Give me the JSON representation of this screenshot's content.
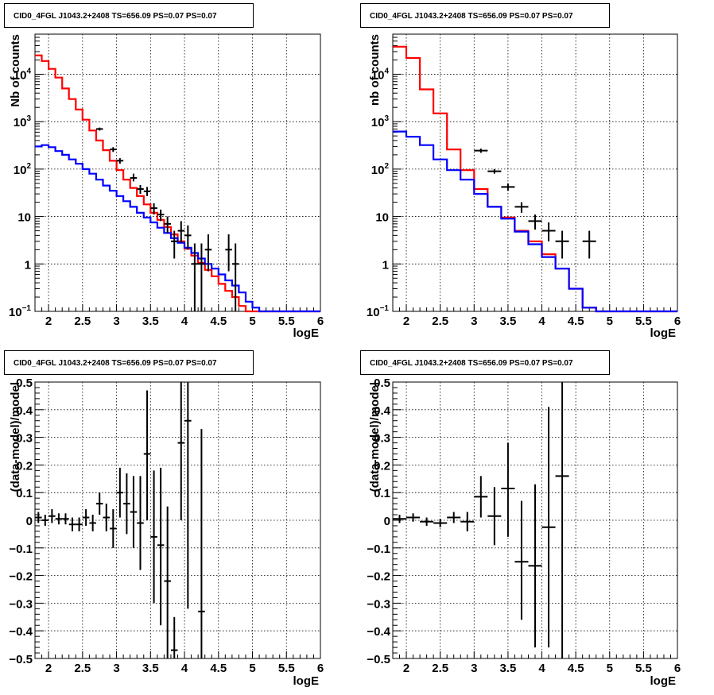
{
  "chart_data": [
    {
      "type": "line",
      "title": "CID0_4FGL J1043.2+2408 TS=656.09 PS=0.07 PS=0.07",
      "xlabel": "logE",
      "ylabel": "Nb of counts",
      "xlim": [
        1.8,
        6.0
      ],
      "ylim": [
        0.1,
        70000
      ],
      "log_y": true,
      "grid": true,
      "x_ticks": [
        2,
        2.5,
        3,
        3.5,
        4,
        4.5,
        5,
        5.5,
        6
      ],
      "x_tick_labels": [
        "2",
        "2.5",
        "3",
        "3.5",
        "4",
        "4.5",
        "5",
        "5.5",
        "6"
      ],
      "y_ticks": [
        0.1,
        1,
        10,
        100,
        1000,
        10000
      ],
      "y_tick_labels": [
        {
          "base": "10",
          "exp": "−1"
        },
        {
          "base": "1",
          "exp": ""
        },
        {
          "base": "10",
          "exp": ""
        },
        {
          "base": "10",
          "exp": "2"
        },
        {
          "base": "10",
          "exp": "3"
        },
        {
          "base": "10",
          "exp": "4"
        }
      ],
      "bin_edges": [
        1.8,
        1.9,
        2.0,
        2.1,
        2.2,
        2.3,
        2.4,
        2.5,
        2.6,
        2.7,
        2.8,
        2.9,
        3.0,
        3.1,
        3.2,
        3.3,
        3.4,
        3.5,
        3.6,
        3.7,
        3.8,
        3.9,
        4.0,
        4.1,
        4.2,
        4.3,
        4.4,
        4.5,
        4.6,
        4.7,
        4.8,
        4.9,
        5.0,
        5.1,
        5.2,
        5.3,
        5.4,
        5.5,
        5.6,
        5.7,
        5.8,
        5.9,
        6.0
      ],
      "series": [
        {
          "color": "#ff0000",
          "values": [
            25000,
            19000,
            13000,
            8500,
            5000,
            3000,
            1800,
            1100,
            650,
            400,
            250,
            150,
            95,
            60,
            40,
            27,
            18,
            12,
            8.5,
            6,
            4.2,
            3.0,
            2.1,
            1.5,
            1.05,
            0.75,
            0.55,
            0.38,
            0.27,
            0.2,
            0.13,
            0.1,
            0.1,
            0.1,
            0.1,
            0.1,
            0.1,
            0.1,
            0.1,
            0.1,
            0.1,
            0.1
          ]
        },
        {
          "color": "#0000ff",
          "values": [
            300,
            320,
            290,
            240,
            200,
            160,
            130,
            100,
            80,
            60,
            45,
            35,
            27,
            21,
            16,
            12,
            9.5,
            7.5,
            5.8,
            4.5,
            3.5,
            2.8,
            2.2,
            1.7,
            1.3,
            1.0,
            0.8,
            0.6,
            0.45,
            0.35,
            0.25,
            0.16,
            0.12,
            0.1,
            0.1,
            0.1,
            0.1,
            0.1,
            0.1,
            0.1,
            0.1,
            0.1
          ]
        }
      ],
      "points": [
        {
          "x": 2.75,
          "y": 700,
          "xerr": 0.05,
          "ylo": 650,
          "yhi": 750
        },
        {
          "x": 2.95,
          "y": 260,
          "xerr": 0.05,
          "ylo": 230,
          "yhi": 290
        },
        {
          "x": 3.05,
          "y": 150,
          "xerr": 0.05,
          "ylo": 130,
          "yhi": 170
        },
        {
          "x": 3.25,
          "y": 65,
          "xerr": 0.05,
          "ylo": 55,
          "yhi": 80
        },
        {
          "x": 3.35,
          "y": 38,
          "xerr": 0.05,
          "ylo": 30,
          "yhi": 46
        },
        {
          "x": 3.45,
          "y": 34,
          "xerr": 0.05,
          "ylo": 27,
          "yhi": 42
        },
        {
          "x": 3.55,
          "y": 15,
          "xerr": 0.05,
          "ylo": 11,
          "yhi": 19
        },
        {
          "x": 3.65,
          "y": 11,
          "xerr": 0.05,
          "ylo": 8,
          "yhi": 14
        },
        {
          "x": 3.75,
          "y": 7,
          "xerr": 0.05,
          "ylo": 4.5,
          "yhi": 10
        },
        {
          "x": 3.85,
          "y": 3,
          "xerr": 0.05,
          "ylo": 1.3,
          "yhi": 5
        },
        {
          "x": 3.95,
          "y": 5,
          "xerr": 0.05,
          "ylo": 2.8,
          "yhi": 8
        },
        {
          "x": 4.05,
          "y": 4,
          "xerr": 0.05,
          "ylo": 2,
          "yhi": 6.5
        },
        {
          "x": 4.15,
          "y": 1,
          "xerr": 0.05,
          "ylo": 0.1,
          "yhi": 2.7
        },
        {
          "x": 4.25,
          "y": 1,
          "xerr": 0.05,
          "ylo": 0.1,
          "yhi": 2.7
        },
        {
          "x": 4.35,
          "y": 2,
          "xerr": 0.05,
          "ylo": 0.7,
          "yhi": 4.2
        },
        {
          "x": 4.65,
          "y": 2,
          "xerr": 0.05,
          "ylo": 0.7,
          "yhi": 4.2
        },
        {
          "x": 4.75,
          "y": 1,
          "xerr": 0.05,
          "ylo": 0.1,
          "yhi": 2.7
        }
      ]
    },
    {
      "type": "line",
      "title": "CID0_4FGL J1043.2+2408 TS=656.09 PS=0.07 PS=0.07",
      "xlabel": "logE",
      "ylabel": "nb of counts",
      "xlim": [
        1.8,
        6.0
      ],
      "ylim": [
        0.1,
        70000
      ],
      "log_y": true,
      "grid": true,
      "x_ticks": [
        2,
        2.5,
        3,
        3.5,
        4,
        4.5,
        5,
        5.5,
        6
      ],
      "x_tick_labels": [
        "2",
        "2.5",
        "3",
        "3.5",
        "4",
        "4.5",
        "5",
        "5.5",
        "6"
      ],
      "y_ticks": [
        0.1,
        1,
        10,
        100,
        1000,
        10000
      ],
      "y_tick_labels": [
        {
          "base": "10",
          "exp": "−1"
        },
        {
          "base": "1",
          "exp": ""
        },
        {
          "base": "10",
          "exp": ""
        },
        {
          "base": "10",
          "exp": "2"
        },
        {
          "base": "10",
          "exp": "3"
        },
        {
          "base": "10",
          "exp": "4"
        }
      ],
      "bin_edges": [
        1.8,
        2.0,
        2.2,
        2.4,
        2.6,
        2.8,
        3.0,
        3.2,
        3.4,
        3.6,
        3.8,
        4.0,
        4.2,
        4.4,
        4.6,
        4.8,
        5.0,
        5.2,
        5.4,
        5.6,
        5.8,
        6.0
      ],
      "series": [
        {
          "color": "#ff0000",
          "values": [
            38000,
            22000,
            4800,
            1500,
            260,
            95,
            38,
            16,
            9.5,
            5,
            3,
            1.6,
            0.8,
            0.3,
            0.12,
            0.1,
            0.1,
            0.1,
            0.1,
            0.1,
            0.1
          ]
        },
        {
          "color": "#0000ff",
          "values": [
            620,
            480,
            320,
            160,
            95,
            60,
            30,
            16,
            9,
            4.8,
            2.6,
            1.4,
            0.8,
            0.3,
            0.12,
            0.1,
            0.1,
            0.1,
            0.1,
            0.1,
            0.1
          ]
        }
      ],
      "points": [
        {
          "x": 3.1,
          "y": 245,
          "xerr": 0.1,
          "ylo": 220,
          "yhi": 270
        },
        {
          "x": 3.3,
          "y": 90,
          "xerr": 0.1,
          "ylo": 80,
          "yhi": 100
        },
        {
          "x": 3.5,
          "y": 42,
          "xerr": 0.1,
          "ylo": 35,
          "yhi": 50
        },
        {
          "x": 3.7,
          "y": 16,
          "xerr": 0.1,
          "ylo": 12,
          "yhi": 20
        },
        {
          "x": 3.9,
          "y": 8,
          "xerr": 0.1,
          "ylo": 5.3,
          "yhi": 11
        },
        {
          "x": 4.1,
          "y": 5,
          "xerr": 0.1,
          "ylo": 3,
          "yhi": 7.5
        },
        {
          "x": 4.3,
          "y": 3,
          "xerr": 0.1,
          "ylo": 1.3,
          "yhi": 5
        },
        {
          "x": 4.7,
          "y": 3,
          "xerr": 0.1,
          "ylo": 1.3,
          "yhi": 5
        }
      ]
    },
    {
      "type": "scatter",
      "title": "CID0_4FGL J1043.2+2408 TS=656.09 PS=0.07 PS=0.07",
      "xlabel": "logE",
      "ylabel": "(data-model)/model",
      "xlim": [
        1.8,
        6.0
      ],
      "ylim": [
        -0.5,
        0.5
      ],
      "grid": true,
      "x_ticks": [
        2,
        2.5,
        3,
        3.5,
        4,
        4.5,
        5,
        5.5,
        6
      ],
      "x_tick_labels": [
        "2",
        "2.5",
        "3",
        "3.5",
        "4",
        "4.5",
        "5",
        "5.5",
        "6"
      ],
      "y_ticks": [
        -0.5,
        -0.4,
        -0.3,
        -0.2,
        -0.1,
        0,
        0.1,
        0.2,
        0.3,
        0.4,
        0.5
      ],
      "y_tick_labels": [
        "−0.5",
        "−0.4",
        "−0.3",
        "−0.2",
        "−0.1",
        "0",
        "0.1",
        "0.2",
        "0.3",
        "0.4",
        "0.5"
      ],
      "points": [
        {
          "x": 1.85,
          "y": 0.01,
          "xerr": 0.05,
          "ylo": -0.01,
          "yhi": 0.03
        },
        {
          "x": 1.95,
          "y": 0.0,
          "xerr": 0.05,
          "ylo": -0.02,
          "yhi": 0.02
        },
        {
          "x": 2.05,
          "y": 0.015,
          "xerr": 0.05,
          "ylo": -0.01,
          "yhi": 0.04
        },
        {
          "x": 2.15,
          "y": 0.005,
          "xerr": 0.05,
          "ylo": -0.015,
          "yhi": 0.025
        },
        {
          "x": 2.25,
          "y": 0.005,
          "xerr": 0.05,
          "ylo": -0.015,
          "yhi": 0.025
        },
        {
          "x": 2.35,
          "y": -0.015,
          "xerr": 0.05,
          "ylo": -0.04,
          "yhi": 0.01
        },
        {
          "x": 2.45,
          "y": -0.015,
          "xerr": 0.05,
          "ylo": -0.04,
          "yhi": 0.01
        },
        {
          "x": 2.55,
          "y": 0.01,
          "xerr": 0.05,
          "ylo": -0.02,
          "yhi": 0.04
        },
        {
          "x": 2.65,
          "y": -0.01,
          "xerr": 0.05,
          "ylo": -0.04,
          "yhi": 0.02
        },
        {
          "x": 2.75,
          "y": 0.06,
          "xerr": 0.05,
          "ylo": 0.02,
          "yhi": 0.1
        },
        {
          "x": 2.85,
          "y": 0.01,
          "xerr": 0.05,
          "ylo": -0.04,
          "yhi": 0.06
        },
        {
          "x": 2.95,
          "y": -0.03,
          "xerr": 0.05,
          "ylo": -0.1,
          "yhi": 0.04
        },
        {
          "x": 3.05,
          "y": 0.1,
          "xerr": 0.05,
          "ylo": 0.01,
          "yhi": 0.19
        },
        {
          "x": 3.15,
          "y": 0.06,
          "xerr": 0.05,
          "ylo": -0.05,
          "yhi": 0.17
        },
        {
          "x": 3.25,
          "y": 0.03,
          "xerr": 0.05,
          "ylo": -0.1,
          "yhi": 0.16
        },
        {
          "x": 3.35,
          "y": -0.01,
          "xerr": 0.05,
          "ylo": -0.18,
          "yhi": 0.16
        },
        {
          "x": 3.45,
          "y": 0.24,
          "xerr": 0.05,
          "ylo": 0.0,
          "yhi": 0.47
        },
        {
          "x": 3.55,
          "y": -0.06,
          "xerr": 0.05,
          "ylo": -0.3,
          "yhi": 0.18
        },
        {
          "x": 3.65,
          "y": -0.09,
          "xerr": 0.05,
          "ylo": -0.38,
          "yhi": 0.19
        },
        {
          "x": 3.75,
          "y": -0.22,
          "xerr": 0.05,
          "ylo": -0.5,
          "yhi": 0.05
        },
        {
          "x": 3.85,
          "y": -0.47,
          "xerr": 0.05,
          "ylo": -0.5,
          "yhi": -0.35
        },
        {
          "x": 3.95,
          "y": 0.28,
          "xerr": 0.05,
          "ylo": 0.0,
          "yhi": 0.5
        },
        {
          "x": 4.05,
          "y": 0.36,
          "xerr": 0.05,
          "ylo": -0.32,
          "yhi": 0.5
        },
        {
          "x": 4.25,
          "y": -0.33,
          "xerr": 0.05,
          "ylo": -0.5,
          "yhi": 0.33
        }
      ],
      "point_labels": []
    },
    {
      "type": "scatter",
      "title": "CID0_4FGL J1043.2+2408 TS=656.09 PS=0.07 PS=0.07",
      "xlabel": "logE",
      "ylabel": "(data-model)/model",
      "xlim": [
        1.8,
        6.0
      ],
      "ylim": [
        -0.5,
        0.5
      ],
      "grid": true,
      "x_ticks": [
        2,
        2.5,
        3,
        3.5,
        4,
        4.5,
        5,
        5.5,
        6
      ],
      "x_tick_labels": [
        "2",
        "2.5",
        "3",
        "3.5",
        "4",
        "4.5",
        "5",
        "5.5",
        "6"
      ],
      "y_ticks": [
        -0.5,
        -0.4,
        -0.3,
        -0.2,
        -0.1,
        0,
        0.1,
        0.2,
        0.3,
        0.4,
        0.5
      ],
      "y_tick_labels": [
        "−0.5",
        "−0.4",
        "−0.3",
        "−0.2",
        "−0.1",
        "0",
        "0.1",
        "0.2",
        "0.3",
        "0.4",
        "0.5"
      ],
      "points": [
        {
          "x": 1.9,
          "y": 0.005,
          "xerr": 0.1,
          "ylo": -0.01,
          "yhi": 0.02
        },
        {
          "x": 2.1,
          "y": 0.01,
          "xerr": 0.1,
          "ylo": -0.005,
          "yhi": 0.025
        },
        {
          "x": 2.3,
          "y": -0.005,
          "xerr": 0.1,
          "ylo": -0.02,
          "yhi": 0.01
        },
        {
          "x": 2.5,
          "y": -0.01,
          "xerr": 0.1,
          "ylo": -0.025,
          "yhi": 0.005
        },
        {
          "x": 2.7,
          "y": 0.01,
          "xerr": 0.1,
          "ylo": -0.01,
          "yhi": 0.03
        },
        {
          "x": 2.9,
          "y": -0.005,
          "xerr": 0.1,
          "ylo": -0.04,
          "yhi": 0.03
        },
        {
          "x": 3.1,
          "y": 0.085,
          "xerr": 0.1,
          "ylo": 0.01,
          "yhi": 0.16
        },
        {
          "x": 3.3,
          "y": 0.015,
          "xerr": 0.1,
          "ylo": -0.09,
          "yhi": 0.12
        },
        {
          "x": 3.5,
          "y": 0.115,
          "xerr": 0.1,
          "ylo": -0.06,
          "yhi": 0.28
        },
        {
          "x": 3.7,
          "y": -0.15,
          "xerr": 0.1,
          "ylo": -0.36,
          "yhi": 0.07
        },
        {
          "x": 3.9,
          "y": -0.165,
          "xerr": 0.1,
          "ylo": -0.46,
          "yhi": 0.13
        },
        {
          "x": 4.1,
          "y": -0.025,
          "xerr": 0.1,
          "ylo": -0.46,
          "yhi": 0.41
        },
        {
          "x": 4.3,
          "y": 0.16,
          "xerr": 0.1,
          "ylo": -0.5,
          "yhi": 0.5
        }
      ]
    }
  ]
}
